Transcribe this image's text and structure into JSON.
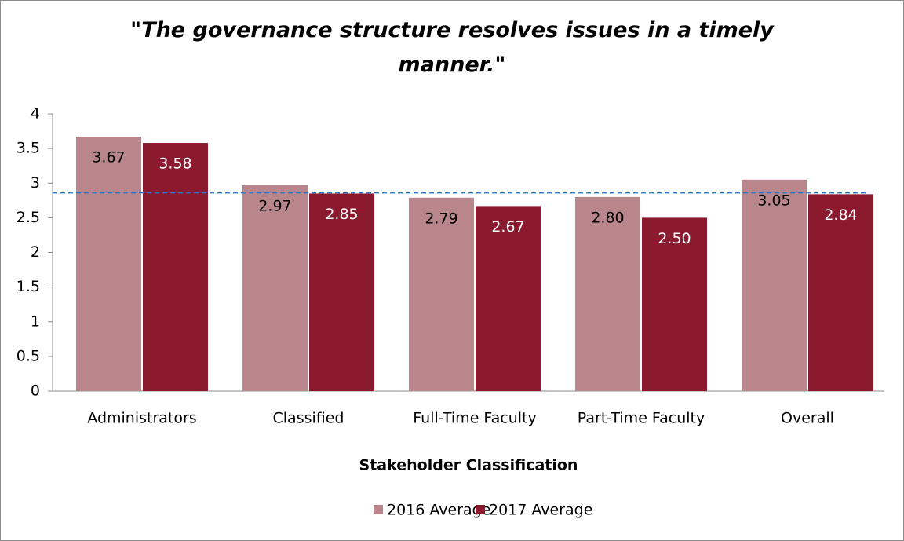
{
  "chart_data": {
    "type": "bar",
    "title": "\"The governance structure resolves issues in a timely manner.\"",
    "x_label": "Stakeholder Classification",
    "categories": [
      "Administrators",
      "Classified",
      "Full-Time Faculty",
      "Part-Time Faculty",
      "Overall"
    ],
    "series": [
      {
        "name": "2016 Average",
        "color": "#b9878b",
        "values": [
          3.67,
          2.97,
          2.79,
          2.8,
          3.05
        ],
        "value_labels": [
          "3.67",
          "2.97",
          "2.79",
          "2.80",
          "3.05"
        ]
      },
      {
        "name": "2017 Average",
        "color": "#8b1a2f",
        "values": [
          3.58,
          2.85,
          2.67,
          2.5,
          2.84
        ],
        "value_labels": [
          "3.58",
          "2.85",
          "2.67",
          "2.50",
          "2.84"
        ]
      }
    ],
    "reference_line": 2.86,
    "ylim": [
      0,
      4
    ],
    "yticks": [
      0,
      0.5,
      1,
      1.5,
      2,
      2.5,
      3,
      3.5,
      4
    ],
    "legend": "bottom"
  }
}
